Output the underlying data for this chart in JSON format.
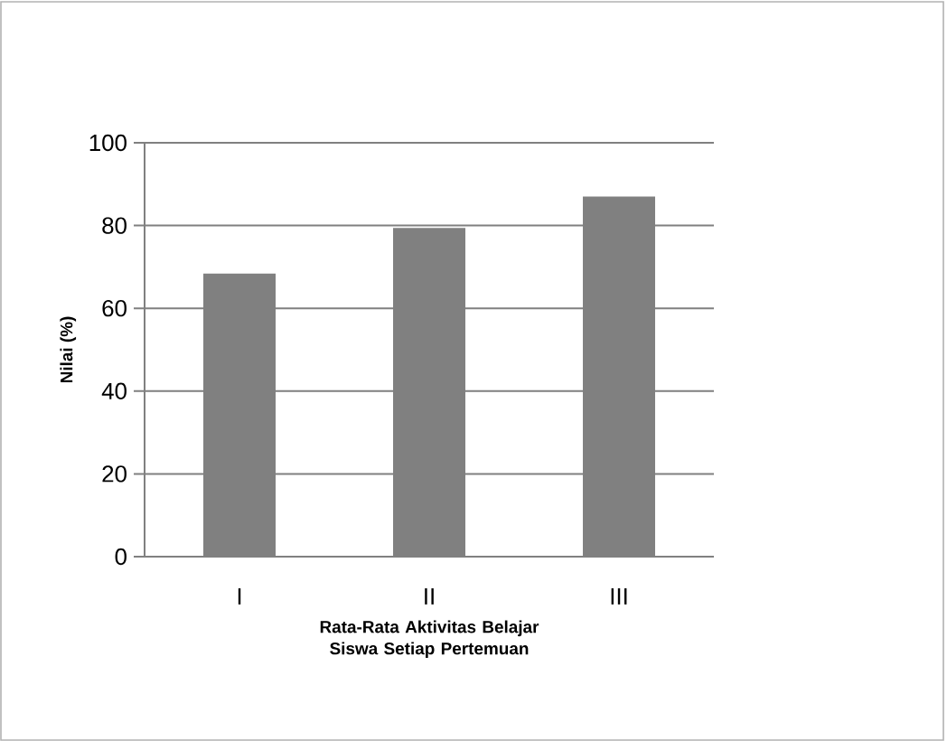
{
  "chart_data": {
    "type": "bar",
    "xlabel": "Rata-Rata Aktivitas Belajar Siswa Setiap Pertemuan",
    "ylabel": "Nilai (%)",
    "categories": [
      "I",
      "II",
      "III"
    ],
    "values": [
      68.4,
      79.4,
      87.0
    ],
    "color": "#808080",
    "ylim": [
      0,
      100
    ],
    "yticks": [
      0,
      20,
      40,
      60,
      80,
      100
    ],
    "grid": "y"
  }
}
